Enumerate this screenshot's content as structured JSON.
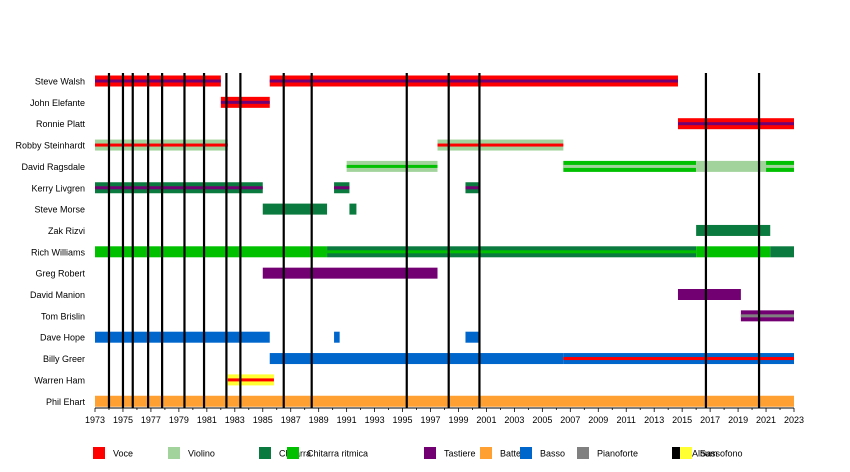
{
  "chart_data": {
    "type": "timeline",
    "title": "",
    "xlabel": "",
    "ylabel": "",
    "xlim": [
      1973,
      2023
    ],
    "x_ticks": [
      1973,
      1975,
      1977,
      1979,
      1981,
      1983,
      1985,
      1987,
      1989,
      1991,
      1993,
      1995,
      1997,
      1999,
      2001,
      2003,
      2005,
      2007,
      2009,
      2011,
      2013,
      2015,
      2017,
      2019,
      2021,
      2023
    ],
    "grid": false,
    "legend_position": "bottom",
    "role_colors": {
      "Voce": "#ff0000",
      "Violino": "#a3d39c",
      "Chitarra": "#0b7a3e",
      "Chitarra ritmica": "#00c000",
      "Tastiere": "#730073",
      "Batteria": "#ffa033",
      "Basso": "#0066cc",
      "Pianoforte": "#808080",
      "Sassofono": "#ffff33",
      "Album": "#000000"
    },
    "legend": [
      {
        "name": "Voce",
        "color": "#ff0000"
      },
      {
        "name": "Violino",
        "color": "#a3d39c"
      },
      {
        "name": "Chitarra",
        "color": "#0b7a3e"
      },
      {
        "name": "Chitarra ritmica",
        "color": "#00c000"
      },
      {
        "name": "Tastiere",
        "color": "#730073"
      },
      {
        "name": "Batteria",
        "color": "#ffa033"
      },
      {
        "name": "Basso",
        "color": "#0066cc"
      },
      {
        "name": "Pianoforte",
        "color": "#808080"
      },
      {
        "name": "Album",
        "color": "#000000"
      },
      {
        "name": "Sassofono",
        "color": "#ffff33"
      }
    ],
    "albums": [
      1974.0,
      1975.0,
      1975.7,
      1976.8,
      1977.8,
      1979.4,
      1980.8,
      1982.4,
      1983.4,
      1986.5,
      1988.5,
      1995.3,
      1998.3,
      2000.5,
      2016.7,
      2020.5
    ],
    "members": [
      {
        "name": "Steve Walsh",
        "segments": [
          {
            "start": 1973,
            "end": 1982.0,
            "primary": "Voce",
            "secondary": "Tastiere"
          },
          {
            "start": 1985.5,
            "end": 2014.7,
            "primary": "Voce",
            "secondary": "Tastiere"
          }
        ]
      },
      {
        "name": "John Elefante",
        "segments": [
          {
            "start": 1982.0,
            "end": 1985.5,
            "primary": "Voce",
            "secondary": "Tastiere"
          }
        ]
      },
      {
        "name": "Ronnie Platt",
        "segments": [
          {
            "start": 2014.7,
            "end": 2023,
            "primary": "Voce",
            "secondary": "Tastiere"
          }
        ]
      },
      {
        "name": "Robby Steinhardt",
        "segments": [
          {
            "start": 1973,
            "end": 1982.5,
            "primary": "Violino",
            "secondary": "Voce"
          },
          {
            "start": 1997.5,
            "end": 2006.5,
            "primary": "Violino",
            "secondary": "Voce"
          }
        ]
      },
      {
        "name": "David Ragsdale",
        "segments": [
          {
            "start": 1991.0,
            "end": 1997.5,
            "primary": "Violino",
            "secondary": "Chitarra ritmica"
          },
          {
            "start": 2006.5,
            "end": 2016.0,
            "primary": "Chitarra ritmica",
            "secondary": "Violino"
          },
          {
            "start": 2016.0,
            "end": 2021.0,
            "primary": "Violino",
            "secondary": ""
          },
          {
            "start": 2021.0,
            "end": 2023,
            "primary": "Chitarra ritmica",
            "secondary": "Violino"
          }
        ]
      },
      {
        "name": "Kerry Livgren",
        "segments": [
          {
            "start": 1973,
            "end": 1985.0,
            "primary": "Chitarra",
            "secondary": "Tastiere"
          },
          {
            "start": 1990.1,
            "end": 1991.2,
            "primary": "Chitarra",
            "secondary": "Tastiere"
          },
          {
            "start": 1999.5,
            "end": 2000.5,
            "primary": "Chitarra",
            "secondary": "Tastiere"
          }
        ]
      },
      {
        "name": "Steve Morse",
        "segments": [
          {
            "start": 1985.0,
            "end": 1989.6,
            "primary": "Chitarra",
            "secondary": ""
          },
          {
            "start": 1991.2,
            "end": 1991.7,
            "primary": "Chitarra",
            "secondary": ""
          }
        ]
      },
      {
        "name": "Zak Rizvi",
        "segments": [
          {
            "start": 2016.0,
            "end": 2021.3,
            "primary": "Chitarra",
            "secondary": ""
          }
        ]
      },
      {
        "name": "Rich Williams",
        "segments": [
          {
            "start": 1973,
            "end": 1989.6,
            "primary": "Chitarra ritmica",
            "secondary": ""
          },
          {
            "start": 1989.6,
            "end": 2016.0,
            "primary": "Chitarra",
            "secondary": "Chitarra ritmica"
          },
          {
            "start": 2016.0,
            "end": 2021.3,
            "primary": "Chitarra ritmica",
            "secondary": ""
          },
          {
            "start": 2021.3,
            "end": 2023,
            "primary": "Chitarra",
            "secondary": ""
          }
        ]
      },
      {
        "name": "Greg Robert",
        "segments": [
          {
            "start": 1985.0,
            "end": 1997.5,
            "primary": "Tastiere",
            "secondary": ""
          }
        ]
      },
      {
        "name": "David Manion",
        "segments": [
          {
            "start": 2014.7,
            "end": 2019.2,
            "primary": "Tastiere",
            "secondary": ""
          }
        ]
      },
      {
        "name": "Tom Brislin",
        "segments": [
          {
            "start": 2019.2,
            "end": 2023,
            "primary": "Tastiere",
            "secondary": "Pianoforte"
          }
        ]
      },
      {
        "name": "Dave Hope",
        "segments": [
          {
            "start": 1973,
            "end": 1985.5,
            "primary": "Basso",
            "secondary": ""
          },
          {
            "start": 1990.1,
            "end": 1990.5,
            "primary": "Basso",
            "secondary": ""
          },
          {
            "start": 1999.5,
            "end": 2000.5,
            "primary": "Basso",
            "secondary": ""
          }
        ]
      },
      {
        "name": "Billy Greer",
        "segments": [
          {
            "start": 1985.5,
            "end": 2006.5,
            "primary": "Basso",
            "secondary": ""
          },
          {
            "start": 2006.5,
            "end": 2023,
            "primary": "Basso",
            "secondary": "Voce"
          }
        ]
      },
      {
        "name": "Warren Ham",
        "segments": [
          {
            "start": 1982.5,
            "end": 1985.8,
            "primary": "Sassofono",
            "secondary": "Voce"
          }
        ]
      },
      {
        "name": "Phil Ehart",
        "segments": [
          {
            "start": 1973,
            "end": 2023,
            "primary": "Batteria",
            "secondary": ""
          }
        ]
      }
    ]
  }
}
